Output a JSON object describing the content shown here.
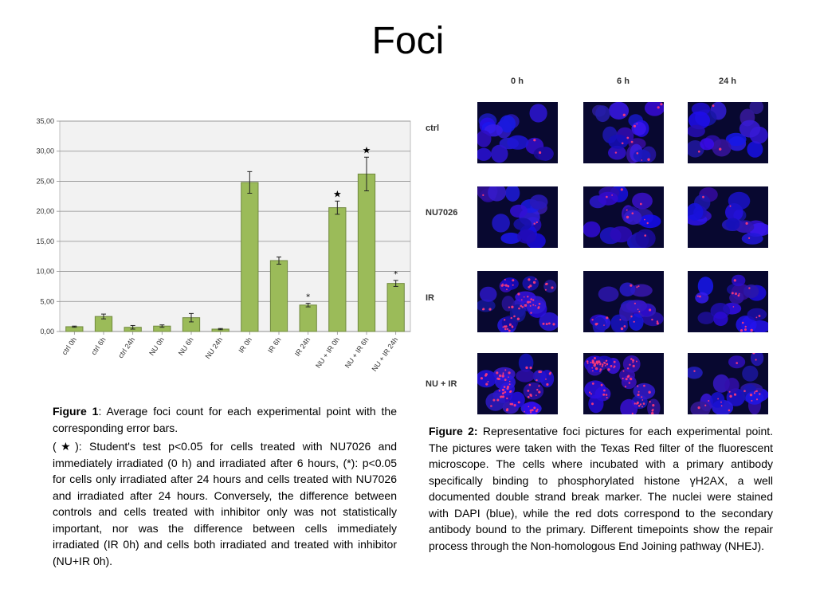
{
  "slide": {
    "title": "Foci"
  },
  "chart_data": {
    "type": "bar",
    "categories": [
      "ctrl 0h",
      "ctrl 6h",
      "ctrl 24h",
      "NU 0h",
      "NU 6h",
      "NU 24h",
      "IR 0h",
      "IR 6h",
      "IR 24h",
      "NU + IR 0h",
      "NU + IR 6h",
      "NU + IR 24h"
    ],
    "values": [
      0.8,
      2.5,
      0.7,
      0.9,
      2.3,
      0.4,
      24.8,
      11.8,
      4.4,
      20.6,
      26.2,
      8.0
    ],
    "errors": [
      0.1,
      0.4,
      0.3,
      0.2,
      0.7,
      0.1,
      1.8,
      0.6,
      0.3,
      1.1,
      2.8,
      0.5
    ],
    "markers": [
      "",
      "",
      "",
      "",
      "",
      "",
      "",
      "",
      "*",
      "★",
      "★",
      "*"
    ],
    "yticks": [
      "0,00",
      "5,00",
      "10,00",
      "15,00",
      "20,00",
      "25,00",
      "30,00",
      "35,00"
    ],
    "ylim": [
      0,
      35
    ],
    "grid": true,
    "bar_color": "#9bbb59",
    "bar_edge": "#71893f",
    "plot_bg": "#f2f2f2"
  },
  "figure1": {
    "p1_label": "Figure 1",
    "p1_text": ": Average foci count for each experimental point with the corresponding error bars.",
    "p2_text": "(★): Student's test p<0.05 for cells treated with NU7026 and immediately irradiated (0 h) and irradiated after 6 hours, (*): p<0.05 for cells only irradiated after 24 hours and cells treated with NU7026 and irradiated after 24 hours. Conversely, the difference between controls and cells treated with inhibitor only was not statistically important, nor was the difference between cells immediately irradiated (IR 0h) and cells both irradiated and treated with inhibitor (NU+IR 0h)."
  },
  "figure2": {
    "label": "Figure 2:",
    "text": " Representative foci pictures for each experimental point. The pictures were taken with the Texas Red filter of the fluorescent microscope. The cells where incubated with a primary antibody specifically binding to phosphorylated histone γH2AX, a well documented double strand break marker. The nuclei were stained with DAPI (blue), while the red dots correspond to the secondary antibody bound to the primary. Different timepoints show the repair process through the Non-homologous End Joining pathway (NHEJ)."
  },
  "micrographs": {
    "columns": [
      "0 h",
      "6 h",
      "24 h"
    ],
    "rows": [
      {
        "label": "ctrl",
        "foci": [
          2,
          12,
          3
        ]
      },
      {
        "label": "NU7026",
        "foci": [
          3,
          10,
          4
        ]
      },
      {
        "label": "IR",
        "foci": [
          60,
          20,
          16
        ]
      },
      {
        "label": "NU + IR",
        "foci": [
          70,
          80,
          22
        ]
      }
    ]
  }
}
